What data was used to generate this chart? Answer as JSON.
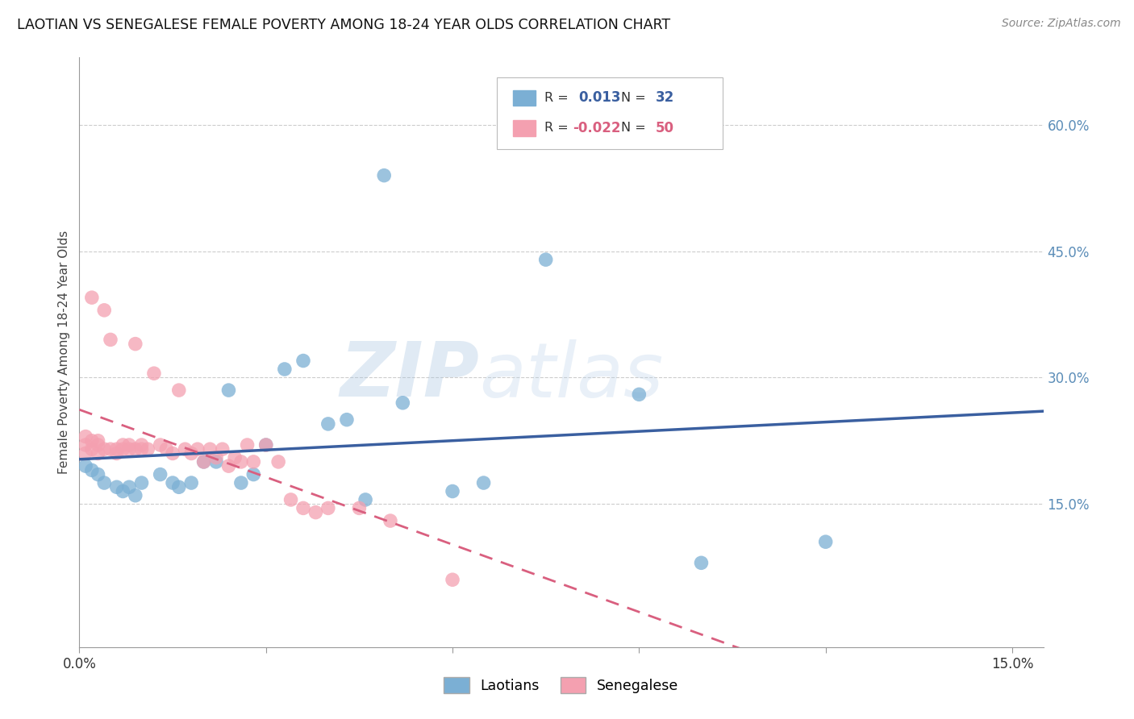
{
  "title": "LAOTIAN VS SENEGALESE FEMALE POVERTY AMONG 18-24 YEAR OLDS CORRELATION CHART",
  "source": "Source: ZipAtlas.com",
  "ylabel": "Female Poverty Among 18-24 Year Olds",
  "xlim": [
    0.0,
    0.155
  ],
  "ylim": [
    -0.02,
    0.68
  ],
  "yticks_right": [
    0.15,
    0.3,
    0.45,
    0.6
  ],
  "ytick_labels_right": [
    "15.0%",
    "30.0%",
    "45.0%",
    "60.0%"
  ],
  "blue_color": "#7BAFD4",
  "pink_color": "#F4A0B0",
  "blue_line_color": "#3A5FA0",
  "pink_line_color": "#D95F7F",
  "legend_R_blue": "0.013",
  "legend_N_blue": "32",
  "legend_R_pink": "-0.022",
  "legend_N_pink": "50",
  "watermark_zip": "ZIP",
  "watermark_atlas": "atlas",
  "blue_x": [
    0.001,
    0.002,
    0.003,
    0.004,
    0.006,
    0.007,
    0.008,
    0.009,
    0.01,
    0.013,
    0.015,
    0.016,
    0.018,
    0.02,
    0.022,
    0.024,
    0.026,
    0.028,
    0.03,
    0.033,
    0.036,
    0.04,
    0.043,
    0.046,
    0.049,
    0.052,
    0.06,
    0.065,
    0.075,
    0.09,
    0.1,
    0.12
  ],
  "blue_y": [
    0.195,
    0.19,
    0.185,
    0.175,
    0.17,
    0.165,
    0.17,
    0.16,
    0.175,
    0.185,
    0.175,
    0.17,
    0.175,
    0.2,
    0.2,
    0.285,
    0.175,
    0.185,
    0.22,
    0.31,
    0.32,
    0.245,
    0.25,
    0.155,
    0.54,
    0.27,
    0.165,
    0.175,
    0.44,
    0.28,
    0.08,
    0.105
  ],
  "pink_x": [
    0.001,
    0.001,
    0.001,
    0.002,
    0.002,
    0.002,
    0.003,
    0.003,
    0.003,
    0.004,
    0.004,
    0.005,
    0.005,
    0.006,
    0.006,
    0.007,
    0.007,
    0.008,
    0.008,
    0.009,
    0.009,
    0.01,
    0.01,
    0.011,
    0.012,
    0.013,
    0.014,
    0.015,
    0.016,
    0.017,
    0.018,
    0.019,
    0.02,
    0.021,
    0.022,
    0.023,
    0.024,
    0.025,
    0.026,
    0.027,
    0.028,
    0.03,
    0.032,
    0.034,
    0.036,
    0.038,
    0.04,
    0.045,
    0.05,
    0.06
  ],
  "pink_y": [
    0.21,
    0.22,
    0.23,
    0.215,
    0.225,
    0.395,
    0.21,
    0.22,
    0.225,
    0.215,
    0.38,
    0.215,
    0.345,
    0.21,
    0.215,
    0.215,
    0.22,
    0.215,
    0.22,
    0.215,
    0.34,
    0.215,
    0.22,
    0.215,
    0.305,
    0.22,
    0.215,
    0.21,
    0.285,
    0.215,
    0.21,
    0.215,
    0.2,
    0.215,
    0.205,
    0.215,
    0.195,
    0.205,
    0.2,
    0.22,
    0.2,
    0.22,
    0.2,
    0.155,
    0.145,
    0.14,
    0.145,
    0.145,
    0.13,
    0.06
  ]
}
